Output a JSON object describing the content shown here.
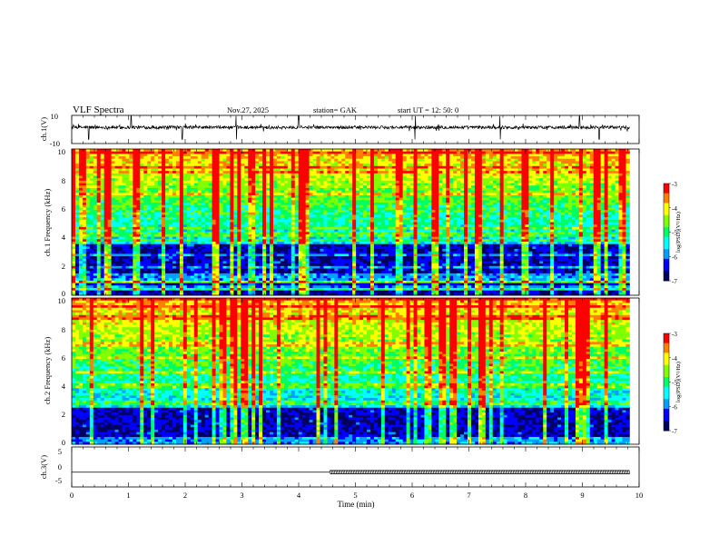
{
  "header": {
    "title": "VLF  Spectra",
    "date": "Nov.27, 2025",
    "station": "station= GAK",
    "start_ut": "start  UT  =    12: 50: 0"
  },
  "colors": {
    "frame": "#000000",
    "trace": "#000000",
    "colormap": [
      "#000060",
      "#0000ff",
      "#00a0ff",
      "#00ffff",
      "#00ff60",
      "#80ff00",
      "#ffff00",
      "#ff8000",
      "#ff0000",
      "#ffffff"
    ]
  },
  "chart_data": [
    {
      "type": "line",
      "panel": "ch1-waveform",
      "ylabel": "ch.1(V)",
      "ylim": [
        -10,
        10
      ],
      "yticks": [
        "10",
        "-10"
      ],
      "x_range_min": [
        0,
        9.83
      ],
      "baseline_v": 1.5,
      "spike_times_min": [
        0.3,
        1.05,
        1.95,
        2.9,
        4.0,
        6.05,
        7.55,
        8.95,
        9.3
      ]
    },
    {
      "type": "heatmap",
      "panel": "ch1-spectrogram",
      "ylabel": "ch.1 Frequency  (kHz)",
      "xlim": [
        0,
        10
      ],
      "ylim": [
        0,
        10
      ],
      "yticks": [
        "0",
        "2",
        "4",
        "6",
        "8",
        "10"
      ],
      "colorbar": {
        "label": "log(PSD)(V²/Hz)",
        "range": [
          -7,
          -3
        ],
        "ticks": [
          "-3",
          "-4",
          "-5",
          "-6",
          "-7"
        ]
      },
      "features": {
        "dark_band_khz": [
          1.5,
          3.5
        ],
        "bright_band_khz": [
          6.5,
          10
        ],
        "quiet_low_band_khz": [
          0,
          1.0
        ]
      }
    },
    {
      "type": "heatmap",
      "panel": "ch2-spectrogram",
      "ylabel": "ch.2 Frequency  (kHz)",
      "xlim": [
        0,
        10
      ],
      "ylim": [
        0,
        10
      ],
      "yticks": [
        "0",
        "2",
        "4",
        "6",
        "8",
        "10"
      ],
      "colorbar": {
        "label": "log(PSD)(V²/Hz)",
        "range": [
          -7,
          -3
        ],
        "ticks": [
          "-3",
          "-4",
          "-5",
          "-6",
          "-7"
        ]
      },
      "features": {
        "dark_band_khz": [
          0.5,
          2.5
        ],
        "bright_band_khz": [
          6.0,
          10
        ]
      }
    },
    {
      "type": "line",
      "panel": "ch3-waveform",
      "ylabel": "ch.3(V)",
      "ylim": [
        -5,
        5
      ],
      "yticks": [
        "5",
        "0",
        "-5"
      ],
      "xlabel": "Time  (min)",
      "xlim": [
        0,
        10
      ],
      "xticks": [
        "0",
        "1",
        "2",
        "3",
        "4",
        "5",
        "6",
        "7",
        "8",
        "9",
        "10"
      ],
      "segments": [
        {
          "x": [
            0,
            4.55
          ],
          "y": -1.3
        },
        {
          "x": [
            4.55,
            9.83
          ],
          "y": -1.3,
          "pattern": "dense-ticks"
        }
      ]
    }
  ]
}
